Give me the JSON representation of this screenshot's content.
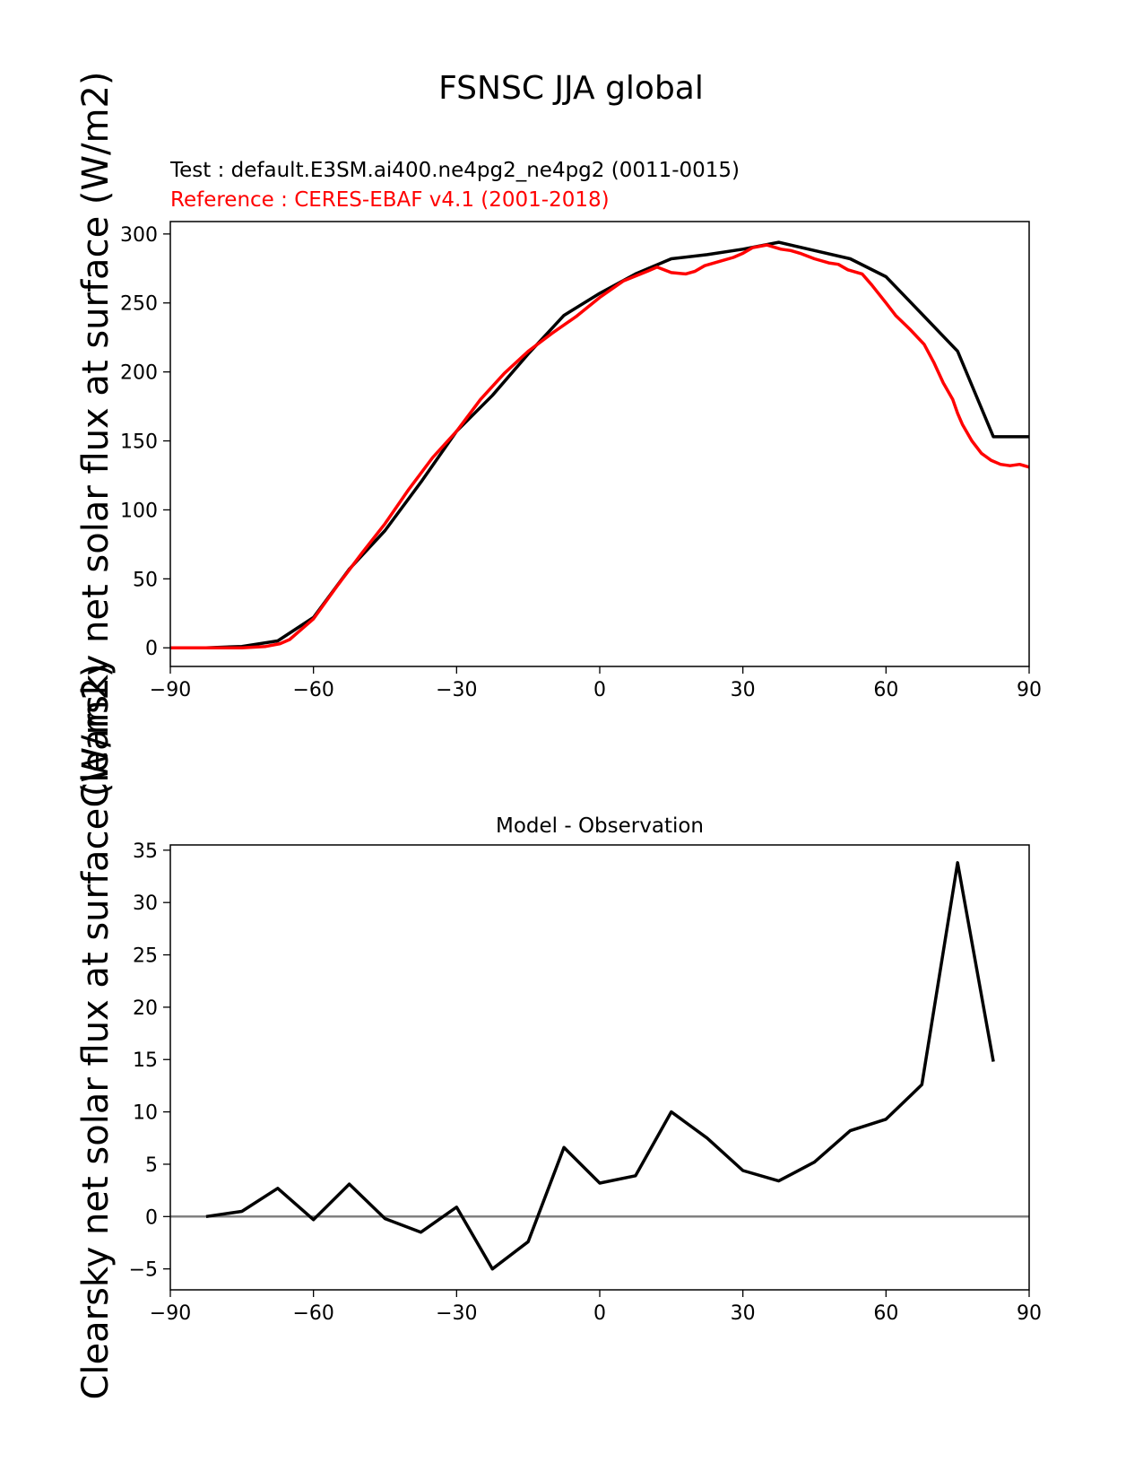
{
  "figure": {
    "suptitle": "FSNSC JJA global"
  },
  "chart_data": [
    {
      "type": "line",
      "test_label": "Test : default.E3SM.ai400.ne4pg2_ne4pg2 (0011-0015)",
      "reference_label": "Reference : CERES-EBAF v4.1 (2001-2018)",
      "ylabel": "Clearsky net solar flux at surface (W/m2)",
      "xlim": [
        -90,
        90
      ],
      "ylim": [
        -13.5,
        309
      ],
      "xticks": [
        -90,
        -60,
        -30,
        0,
        30,
        60,
        90
      ],
      "yticks": [
        0,
        50,
        100,
        150,
        200,
        250,
        300
      ],
      "xtick_labels": [
        "−90",
        "−60",
        "−30",
        "0",
        "30",
        "60",
        "90"
      ],
      "ytick_labels": [
        "0",
        "50",
        "100",
        "150",
        "200",
        "250",
        "300"
      ],
      "colors": {
        "test": "#000000",
        "reference": "#ff0000"
      },
      "series": [
        {
          "key": "test",
          "x": [
            -90,
            -82.5,
            -75,
            -67.5,
            -60,
            -52.5,
            -45,
            -37.5,
            -30,
            -22.5,
            -15,
            -7.5,
            0,
            7.5,
            15,
            22.5,
            30,
            37.5,
            45,
            52.5,
            60,
            67.5,
            75,
            82.5,
            90
          ],
          "y": [
            0,
            0,
            1,
            5,
            22,
            57,
            85,
            120,
            157,
            183,
            213,
            241,
            257,
            271,
            282,
            285,
            289,
            294,
            288,
            282,
            269,
            242,
            215,
            153,
            153
          ]
        },
        {
          "key": "reference",
          "x": [
            -90,
            -80,
            -75,
            -70,
            -67,
            -65,
            -63,
            -60,
            -55,
            -50,
            -45,
            -40,
            -35,
            -30,
            -25,
            -20,
            -15,
            -10,
            -5,
            0,
            5,
            10,
            12,
            15,
            18,
            20,
            22,
            25,
            28,
            30,
            32,
            35,
            38,
            40,
            42,
            45,
            48,
            50,
            52,
            55,
            57,
            60,
            62,
            65,
            68,
            70,
            72,
            74,
            75,
            76,
            78,
            80,
            82,
            84,
            86,
            88,
            90
          ],
          "y": [
            0,
            0,
            0,
            1,
            3,
            6,
            12,
            21,
            45,
            68,
            90,
            115,
            138,
            157,
            180,
            199,
            215,
            228,
            240,
            254,
            266,
            273,
            276,
            272,
            271,
            273,
            277,
            280,
            283,
            286,
            290,
            292,
            289,
            288,
            286,
            282,
            279,
            278,
            274,
            271,
            263,
            250,
            241,
            231,
            220,
            207,
            192,
            180,
            170,
            162,
            150,
            141,
            136,
            133,
            132,
            133,
            131
          ]
        }
      ]
    },
    {
      "type": "line",
      "title": "Model - Observation",
      "xlim": [
        -90,
        90
      ],
      "ylim": [
        -7,
        35.5
      ],
      "xticks": [
        -90,
        -60,
        -30,
        0,
        30,
        60,
        90
      ],
      "yticks": [
        -5,
        0,
        5,
        10,
        15,
        20,
        25,
        30,
        35
      ],
      "xtick_labels": [
        "−90",
        "−60",
        "−30",
        "0",
        "30",
        "60",
        "90"
      ],
      "ytick_labels": [
        "−5",
        "0",
        "5",
        "10",
        "15",
        "20",
        "25",
        "30",
        "35"
      ],
      "zero_line_color": "#808080",
      "series": [
        {
          "key": "difference",
          "x": [
            -82.5,
            -75,
            -67.5,
            -60,
            -52.5,
            -45,
            -37.5,
            -30,
            -22.5,
            -15,
            -7.5,
            0,
            7.5,
            15,
            22.5,
            30,
            37.5,
            45,
            52.5,
            60,
            67.5,
            75,
            82.5
          ],
          "y": [
            0,
            0.5,
            2.7,
            -0.3,
            3.1,
            -0.2,
            -1.5,
            0.9,
            -5,
            -2.4,
            6.6,
            3.2,
            3.9,
            10,
            7.5,
            4.4,
            3.4,
            5.2,
            8.2,
            9.3,
            12.6,
            33.8,
            14.8
          ]
        }
      ]
    }
  ]
}
